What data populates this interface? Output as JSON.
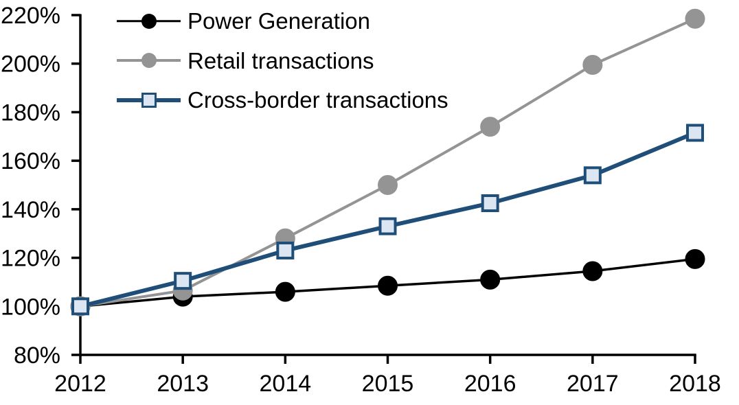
{
  "chart_data": {
    "type": "line",
    "title": "",
    "xlabel": "",
    "ylabel": "",
    "grid": false,
    "legend_position": "top-left",
    "x": [
      2012,
      2013,
      2014,
      2015,
      2016,
      2017,
      2018
    ],
    "x_tick_labels": [
      "2012",
      "2013",
      "2014",
      "2015",
      "2016",
      "2017",
      "2018"
    ],
    "ylim": [
      80,
      220
    ],
    "y_tick_step": 20,
    "y_tick_labels": [
      "80%",
      "100%",
      "120%",
      "140%",
      "160%",
      "180%",
      "200%",
      "220%"
    ],
    "series": [
      {
        "name": "Power Generation",
        "values": [
          100,
          104,
          106,
          108.5,
          111,
          114.5,
          119.5
        ],
        "color": "#000000",
        "marker": "circle",
        "marker_fill": "#000000",
        "marker_stroke": "#000000"
      },
      {
        "name": "Retail transactions",
        "values": [
          100,
          106.5,
          128,
          150,
          174,
          199.5,
          218.5
        ],
        "color": "#949494",
        "marker": "circle",
        "marker_fill": "#949494",
        "marker_stroke": "#949494"
      },
      {
        "name": "Cross-border transactions",
        "values": [
          100,
          110.5,
          123,
          133,
          142.5,
          154,
          171.5
        ],
        "color": "#1f4e79",
        "marker": "square",
        "marker_fill": "#dce6f2",
        "marker_stroke": "#1f4e79"
      }
    ]
  }
}
